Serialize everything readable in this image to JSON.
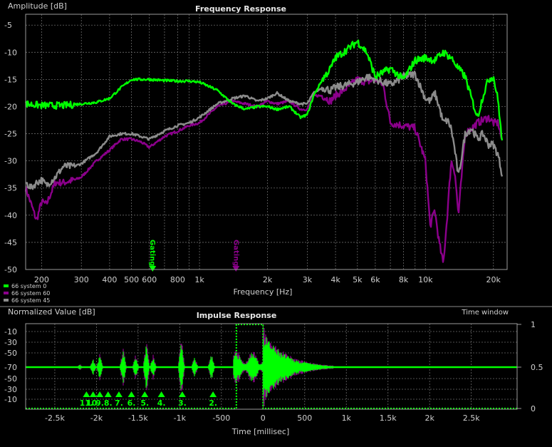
{
  "colors": {
    "background": "#000000",
    "grid": "#6a6a6a",
    "text": "#cfcfcf",
    "title": "#e8e8e8",
    "series0": "#00ff00",
    "series60": "#8b008b",
    "series45": "#8c8c8c"
  },
  "chart_data": [
    {
      "type": "line",
      "title": "Frequency Response",
      "ylabel": "Amplitude [dB]",
      "xlabel": "Frequency [Hz]",
      "xscale": "log",
      "xlim": [
        170,
        23000
      ],
      "ylim": [
        -50,
        -3
      ],
      "grid": true,
      "yticks": [
        -5,
        -10,
        -15,
        -20,
        -25,
        -30,
        -35,
        -40,
        -45,
        -50
      ],
      "xticks": [
        {
          "v": 200,
          "label": "200"
        },
        {
          "v": 300,
          "label": "300"
        },
        {
          "v": 400,
          "label": "400"
        },
        {
          "v": 500,
          "label": "500"
        },
        {
          "v": 600,
          "label": "600"
        },
        {
          "v": 800,
          "label": "800"
        },
        {
          "v": 1000,
          "label": "1k"
        },
        {
          "v": 2000,
          "label": "2k"
        },
        {
          "v": 3000,
          "label": "3k"
        },
        {
          "v": 4000,
          "label": "4k"
        },
        {
          "v": 5000,
          "label": "5k"
        },
        {
          "v": 6000,
          "label": "6k"
        },
        {
          "v": 8000,
          "label": "8k"
        },
        {
          "v": 10000,
          "label": "10k"
        },
        {
          "v": 20000,
          "label": "20k"
        }
      ],
      "minor_grid": [
        700,
        900,
        7000,
        9000
      ],
      "legend_position": "bottom-left",
      "series": [
        {
          "name": "66 system 0",
          "color": "#00ff00",
          "x": [
            170,
            200,
            250,
            300,
            350,
            400,
            450,
            500,
            600,
            700,
            800,
            900,
            1000,
            1200,
            1400,
            1600,
            1800,
            2000,
            2200,
            2500,
            2800,
            3000,
            3200,
            3500,
            3800,
            4000,
            4500,
            5000,
            5500,
            6000,
            7000,
            8000,
            9000,
            10000,
            11000,
            12000,
            13000,
            14000,
            15000,
            16000,
            17000,
            18000,
            19000,
            20000,
            21000,
            22000
          ],
          "y": [
            -19.5,
            -19.8,
            -19.8,
            -19.5,
            -19.2,
            -18.5,
            -16.5,
            -15,
            -15,
            -15.2,
            -15.3,
            -15.3,
            -15.5,
            -17,
            -19.5,
            -20.5,
            -20,
            -20,
            -20.5,
            -20,
            -22,
            -21.5,
            -18,
            -15,
            -13,
            -11,
            -9.5,
            -8,
            -10,
            -14.5,
            -13,
            -15,
            -11.5,
            -11,
            -11.5,
            -10,
            -11,
            -13,
            -14.5,
            -18.5,
            -22,
            -18,
            -15,
            -14.5,
            -19,
            -28
          ]
        },
        {
          "name": "66 system 60",
          "color": "#8b008b",
          "x": [
            170,
            180,
            190,
            200,
            210,
            230,
            250,
            280,
            300,
            350,
            400,
            450,
            500,
            550,
            600,
            700,
            800,
            900,
            1000,
            1200,
            1400,
            1600,
            1800,
            2000,
            2200,
            2500,
            2800,
            3000,
            3200,
            3500,
            3800,
            4000,
            4500,
            5000,
            5500,
            6000,
            6500,
            7000,
            8000,
            9000,
            10000,
            10500,
            11000,
            11500,
            12000,
            12500,
            13000,
            13500,
            14000,
            15000,
            16000,
            17000,
            18000,
            19000,
            20000,
            21000,
            22000
          ],
          "y": [
            -35,
            -38,
            -41,
            -37.5,
            -38,
            -34,
            -34,
            -33.5,
            -33,
            -30,
            -28,
            -26,
            -26,
            -26.5,
            -27.5,
            -25.5,
            -24.5,
            -23.5,
            -23,
            -20,
            -19,
            -19.5,
            -20,
            -19,
            -19.5,
            -19,
            -20.5,
            -20.5,
            -18,
            -18,
            -19,
            -18,
            -16.5,
            -15,
            -15.5,
            -15,
            -16,
            -23,
            -23.5,
            -24,
            -30,
            -42,
            -39,
            -45,
            -49,
            -40,
            -30,
            -32,
            -40,
            -25,
            -24,
            -23,
            -22.5,
            -22,
            -23,
            -23,
            -27
          ]
        },
        {
          "name": "66 system 45",
          "color": "#8c8c8c",
          "x": [
            170,
            180,
            190,
            200,
            210,
            230,
            250,
            280,
            300,
            350,
            400,
            450,
            500,
            550,
            600,
            700,
            800,
            900,
            1000,
            1200,
            1400,
            1600,
            1800,
            2000,
            2200,
            2500,
            2800,
            3000,
            3200,
            3500,
            3800,
            4000,
            4500,
            5000,
            5500,
            6000,
            7000,
            8000,
            9000,
            10000,
            10500,
            11000,
            11500,
            12000,
            12500,
            13000,
            13500,
            14000,
            15000,
            16000,
            17000,
            18000,
            19000,
            20000,
            21000,
            22000
          ],
          "y": [
            -34,
            -35,
            -34,
            -33.5,
            -34.5,
            -33,
            -31,
            -31,
            -30.5,
            -28.5,
            -25.5,
            -25,
            -25,
            -25.5,
            -26,
            -24.5,
            -23.5,
            -23,
            -22,
            -19.5,
            -18.5,
            -18,
            -19,
            -18.5,
            -17.5,
            -19,
            -19.5,
            -19.5,
            -17.5,
            -16.5,
            -17,
            -16.5,
            -16,
            -15.5,
            -14.5,
            -15,
            -16,
            -14.5,
            -14,
            -18.5,
            -19,
            -17.5,
            -20,
            -23,
            -22.5,
            -24,
            -28,
            -33,
            -25,
            -24,
            -26,
            -25,
            -27,
            -27,
            -29,
            -33
          ]
        }
      ],
      "annotations": [
        {
          "text": "Gating",
          "x": 620,
          "color": "#00ff00"
        },
        {
          "text": "Gating",
          "x": 1450,
          "color": "#8b008b"
        }
      ]
    },
    {
      "type": "line",
      "title": "Impulse Response",
      "ylabel": "Normalized Value [dB]",
      "xlabel": "Time [millisec]",
      "y2label": "Time window",
      "xlim": [
        -2850,
        3050
      ],
      "grid": true,
      "xticks": [
        {
          "v": -2500,
          "label": "-2.5k"
        },
        {
          "v": -2000,
          "label": "-2k"
        },
        {
          "v": -1500,
          "label": "-1.5k"
        },
        {
          "v": -1000,
          "label": "-1k"
        },
        {
          "v": -500,
          "label": "-500"
        },
        {
          "v": 0,
          "label": "0"
        },
        {
          "v": 500,
          "label": "500"
        },
        {
          "v": 1000,
          "label": "1k"
        },
        {
          "v": 1500,
          "label": "1.5k"
        },
        {
          "v": 2000,
          "label": "2k"
        },
        {
          "v": 2500,
          "label": "2.5k"
        }
      ],
      "yticks_left": [
        "-10",
        "-30",
        "-50",
        "-70",
        "-50",
        "-30",
        "-10"
      ],
      "yticks_right": [
        "1",
        "0.5",
        "0"
      ],
      "time_window": {
        "start": -320,
        "end": 0,
        "level": 1
      },
      "reflection_markers": [
        {
          "label": "11.",
          "t": -2120
        },
        {
          "label": "10.",
          "t": -2040
        },
        {
          "label": "9.",
          "t": -1960
        },
        {
          "label": "8.",
          "t": -1860
        },
        {
          "label": "7.",
          "t": -1730
        },
        {
          "label": "6.",
          "t": -1580
        },
        {
          "label": "5.",
          "t": -1420
        },
        {
          "label": "4.",
          "t": -1220
        },
        {
          "label": "3.",
          "t": -970
        },
        {
          "label": "2.",
          "t": -600
        }
      ],
      "bursts": [
        {
          "t": -2200,
          "amp": 0.08
        },
        {
          "t": -2040,
          "amp": 0.22
        },
        {
          "t": -1960,
          "amp": 0.35
        },
        {
          "t": -1680,
          "amp": 0.55
        },
        {
          "t": -1530,
          "amp": 0.3
        },
        {
          "t": -1400,
          "amp": 0.65
        },
        {
          "t": -1320,
          "amp": 0.3
        },
        {
          "t": -980,
          "amp": 0.75
        },
        {
          "t": -820,
          "amp": 0.3
        },
        {
          "t": -620,
          "amp": 0.4
        }
      ],
      "main_response": {
        "start": -360,
        "peak_t": 0,
        "end": 850,
        "amp": 0.97
      }
    }
  ]
}
